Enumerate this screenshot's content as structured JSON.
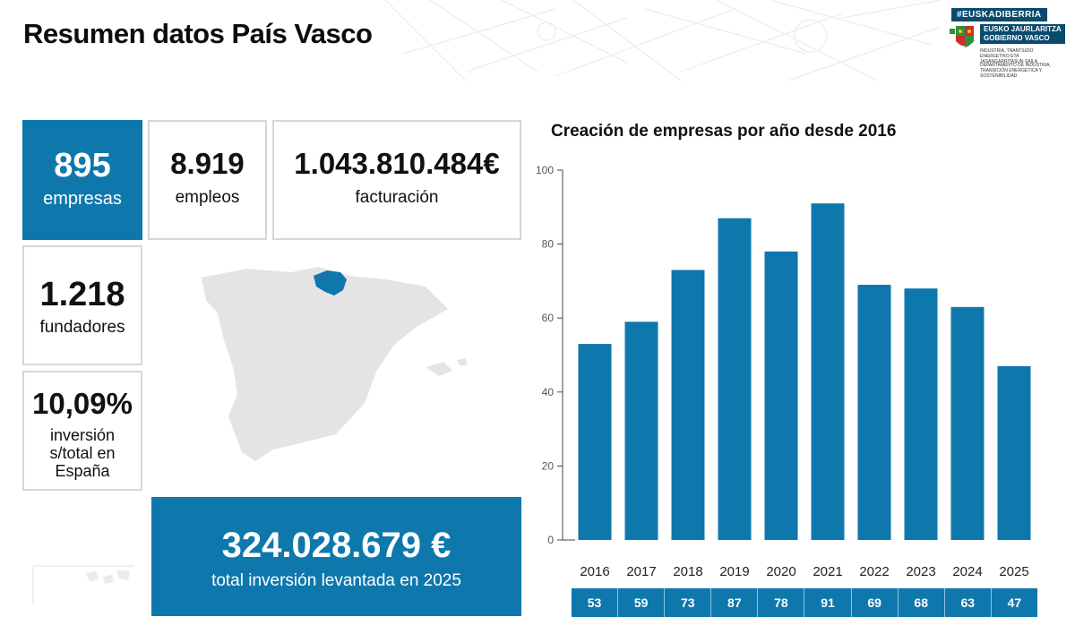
{
  "header": {
    "title": "Resumen datos País Vasco",
    "hashtag": "#EUSKADIBERRIA",
    "gov_name_line1": "EUSKO JAURLARITZA",
    "gov_name_line2": "GOBIERNO VASCO",
    "dept_eu": "INDUSTRIA, TRANTSIZIO ENERGETIKO ETA JASANGARRITASUN SAILA",
    "dept_es": "DEPARTAMENTO DE INDUSTRIA, TRANSICIÓN ENERGÉTICA Y SOSTENIBILIDAD"
  },
  "stats": {
    "empresas": {
      "value": "895",
      "label": "empresas"
    },
    "empleos": {
      "value": "8.919",
      "label": "empleos"
    },
    "facturacion": {
      "value": "1.043.810.484€",
      "label": "facturación"
    },
    "fundadores": {
      "value": "1.218",
      "label": "fundadores"
    },
    "inversion_pct": {
      "value": "10,09%",
      "label_line1": "inversión",
      "label_line2": "s/total en",
      "label_line3": "España"
    },
    "inversion_total": {
      "value": "324.028.679 €",
      "label": "total inversión levantada en 2025"
    }
  },
  "colors": {
    "accent": "#0e78ad",
    "map_gray": "#e4e4e4",
    "border": "#d6d6d6"
  },
  "chart_data": {
    "type": "bar",
    "title": "Creación de empresas por año desde 2016",
    "categories": [
      "2016",
      "2017",
      "2018",
      "2019",
      "2020",
      "2021",
      "2022",
      "2023",
      "2024",
      "2025"
    ],
    "values": [
      53,
      59,
      73,
      87,
      78,
      91,
      69,
      68,
      63,
      47
    ],
    "yticks": [
      0,
      20,
      40,
      60,
      80,
      100
    ],
    "ylim": [
      0,
      100
    ],
    "grid": false,
    "color": "#0e78ad"
  }
}
